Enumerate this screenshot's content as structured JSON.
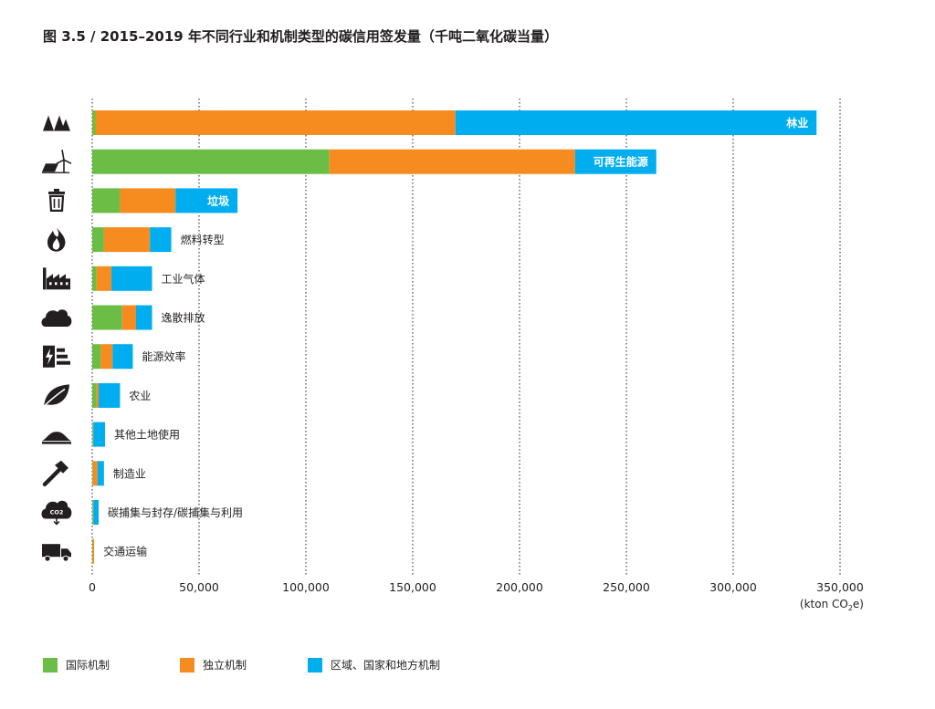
{
  "title": "图 3.5 / 2015–2019 年不同行业和机制类型的碳信用签发量（千吨二氧化碳当量）",
  "unit": {
    "prefix": "(kton CO",
    "sub": "2",
    "suffix": "e)"
  },
  "colors": {
    "international": "#6cbd45",
    "independent": "#f68b1f",
    "regional": "#00aeef"
  },
  "chart_data": {
    "type": "bar",
    "orientation": "horizontal",
    "stacked": true,
    "title": "图 3.5 / 2015–2019 年不同行业和机制类型的碳信用签发量（千吨二氧化碳当量）",
    "xlabel": "(kton CO2e)",
    "xlim": [
      0,
      350000
    ],
    "xticks": [
      0,
      50000,
      100000,
      150000,
      200000,
      250000,
      300000,
      350000
    ],
    "xtick_labels": [
      "0",
      "50,000",
      "100,000",
      "150,000",
      "200,000",
      "250,000",
      "300,000",
      "350,000"
    ],
    "grid": "vertical",
    "legend_position": "bottom-left",
    "categories": [
      "林业",
      "可再生能源",
      "垃圾",
      "燃料转型",
      "工业气体",
      "逸散排放",
      "能源效率",
      "农业",
      "其他土地使用",
      "制造业",
      "碳捕集与封存/碳捕集与利用",
      "交通运输"
    ],
    "category_icons": [
      "trees-icon",
      "wind-solar-icon",
      "trash-bin-icon",
      "flame-icon",
      "factory-icon",
      "cloud-icon",
      "energy-efficiency-icon",
      "leaf-icon",
      "land-mound-icon",
      "hammer-icon",
      "co2-cloud-icon",
      "truck-icon"
    ],
    "label_inside_bar": [
      true,
      true,
      true,
      false,
      false,
      false,
      false,
      false,
      false,
      false,
      false,
      false
    ],
    "series": [
      {
        "name": "国际机制",
        "color": "#6cbd45",
        "values": [
          1500,
          111000,
          13000,
          5500,
          2000,
          14000,
          4000,
          2000,
          300,
          300,
          300,
          200
        ]
      },
      {
        "name": "独立机制",
        "color": "#f68b1f",
        "values": [
          168500,
          115000,
          26000,
          21500,
          7000,
          6500,
          5500,
          1000,
          200,
          2200,
          200,
          700
        ]
      },
      {
        "name": "区域、国家和地方机制",
        "color": "#00aeef",
        "values": [
          169000,
          38000,
          29000,
          10000,
          19000,
          7500,
          9500,
          10000,
          5500,
          3000,
          2500,
          0
        ]
      }
    ]
  }
}
